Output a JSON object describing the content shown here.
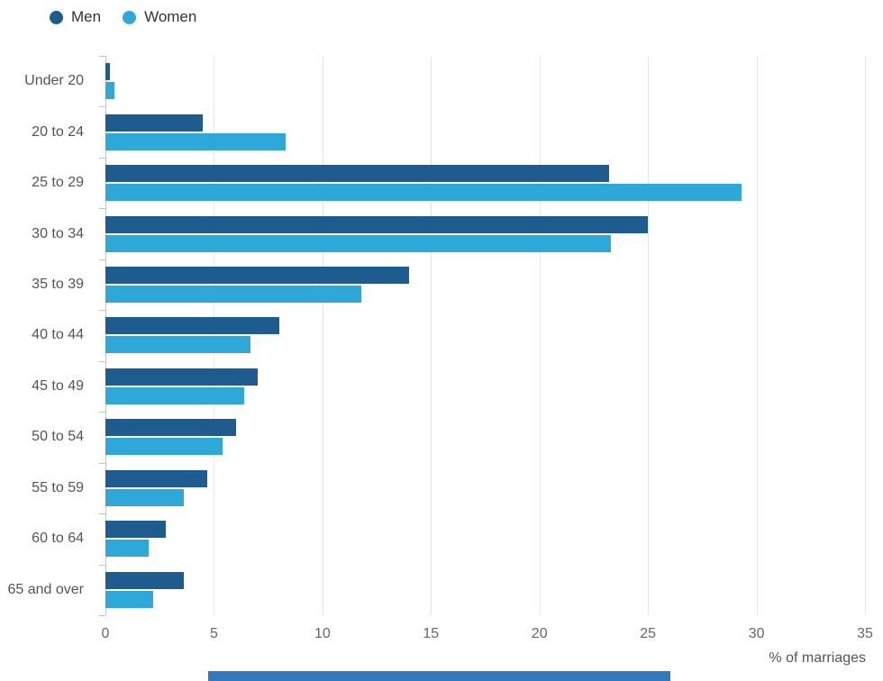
{
  "legend": {
    "items": [
      {
        "label": "Men",
        "color": "#1e5b8e"
      },
      {
        "label": "Women",
        "color": "#2da8d8"
      }
    ]
  },
  "chart_data": {
    "type": "bar",
    "orientation": "horizontal",
    "title": "",
    "xlabel": "% of marriages",
    "ylabel": "",
    "categories": [
      "Under 20",
      "20 to 24",
      "25 to 29",
      "30 to 34",
      "35 to 39",
      "40 to 44",
      "45 to 49",
      "50 to 54",
      "55 to 59",
      "60 to 64",
      "65 and over"
    ],
    "series": [
      {
        "name": "Men",
        "color": "#1e5b8e",
        "values": [
          0.2,
          4.5,
          23.2,
          25.0,
          14.0,
          8.0,
          7.0,
          6.0,
          4.7,
          2.8,
          3.6
        ]
      },
      {
        "name": "Women",
        "color": "#2da8d8",
        "values": [
          0.4,
          8.3,
          29.3,
          23.3,
          11.8,
          6.7,
          6.4,
          5.4,
          3.6,
          2.0,
          2.2
        ]
      }
    ],
    "xlim": [
      0,
      35
    ],
    "x_ticks": [
      0,
      5,
      10,
      15,
      20,
      25,
      30,
      35
    ],
    "grid": true,
    "legend_position": "top-left"
  }
}
